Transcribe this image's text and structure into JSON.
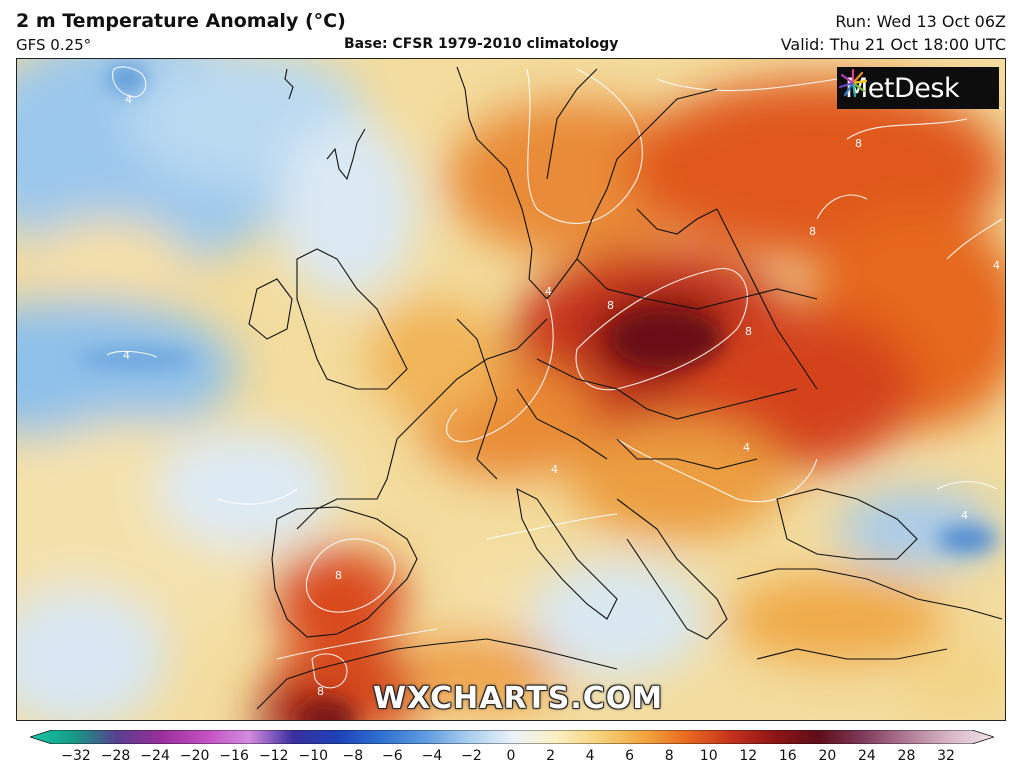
{
  "header": {
    "title": "2 m Temperature Anomaly (°C)",
    "model": "GFS 0.25°",
    "base": "Base: CFSR 1979-2010 climatology",
    "run": "Run: Wed 13 Oct 06Z",
    "valid": "Valid: Thu 21 Oct 18:00 UTC"
  },
  "logo": {
    "text": "MetDesk",
    "icon": "metdesk-starburst-icon"
  },
  "watermark": "WXCHARTS.COM",
  "colorbar": {
    "ticks": [
      "−32",
      "−28",
      "−24",
      "−20",
      "−16",
      "−12",
      "−10",
      "−8",
      "−6",
      "−4",
      "−2",
      "0",
      "2",
      "4",
      "6",
      "8",
      "10",
      "12",
      "16",
      "20",
      "24",
      "28",
      "32"
    ],
    "colors": [
      "#18c8a8",
      "#159a86",
      "#5a3e8f",
      "#9a2f9c",
      "#c34fc1",
      "#d48be0",
      "#3a2f9f",
      "#1e40b8",
      "#2f6fd1",
      "#5d9ae0",
      "#a9cdef",
      "#eaf2fb",
      "#fbf0c4",
      "#f6d27a",
      "#f2a640",
      "#e8691f",
      "#c5321c",
      "#8f1515",
      "#5e0d18",
      "#7f3a5a",
      "#b07a94",
      "#d8b7c6",
      "#f0e4ea"
    ]
  },
  "map_labels": [
    {
      "text": "4"
    },
    {
      "text": "4"
    },
    {
      "text": "8"
    },
    {
      "text": "8"
    },
    {
      "text": "8"
    },
    {
      "text": "8"
    },
    {
      "text": "4"
    },
    {
      "text": "4"
    },
    {
      "text": "8"
    },
    {
      "text": "4"
    },
    {
      "text": "4"
    },
    {
      "text": "8"
    },
    {
      "text": "4"
    }
  ]
}
